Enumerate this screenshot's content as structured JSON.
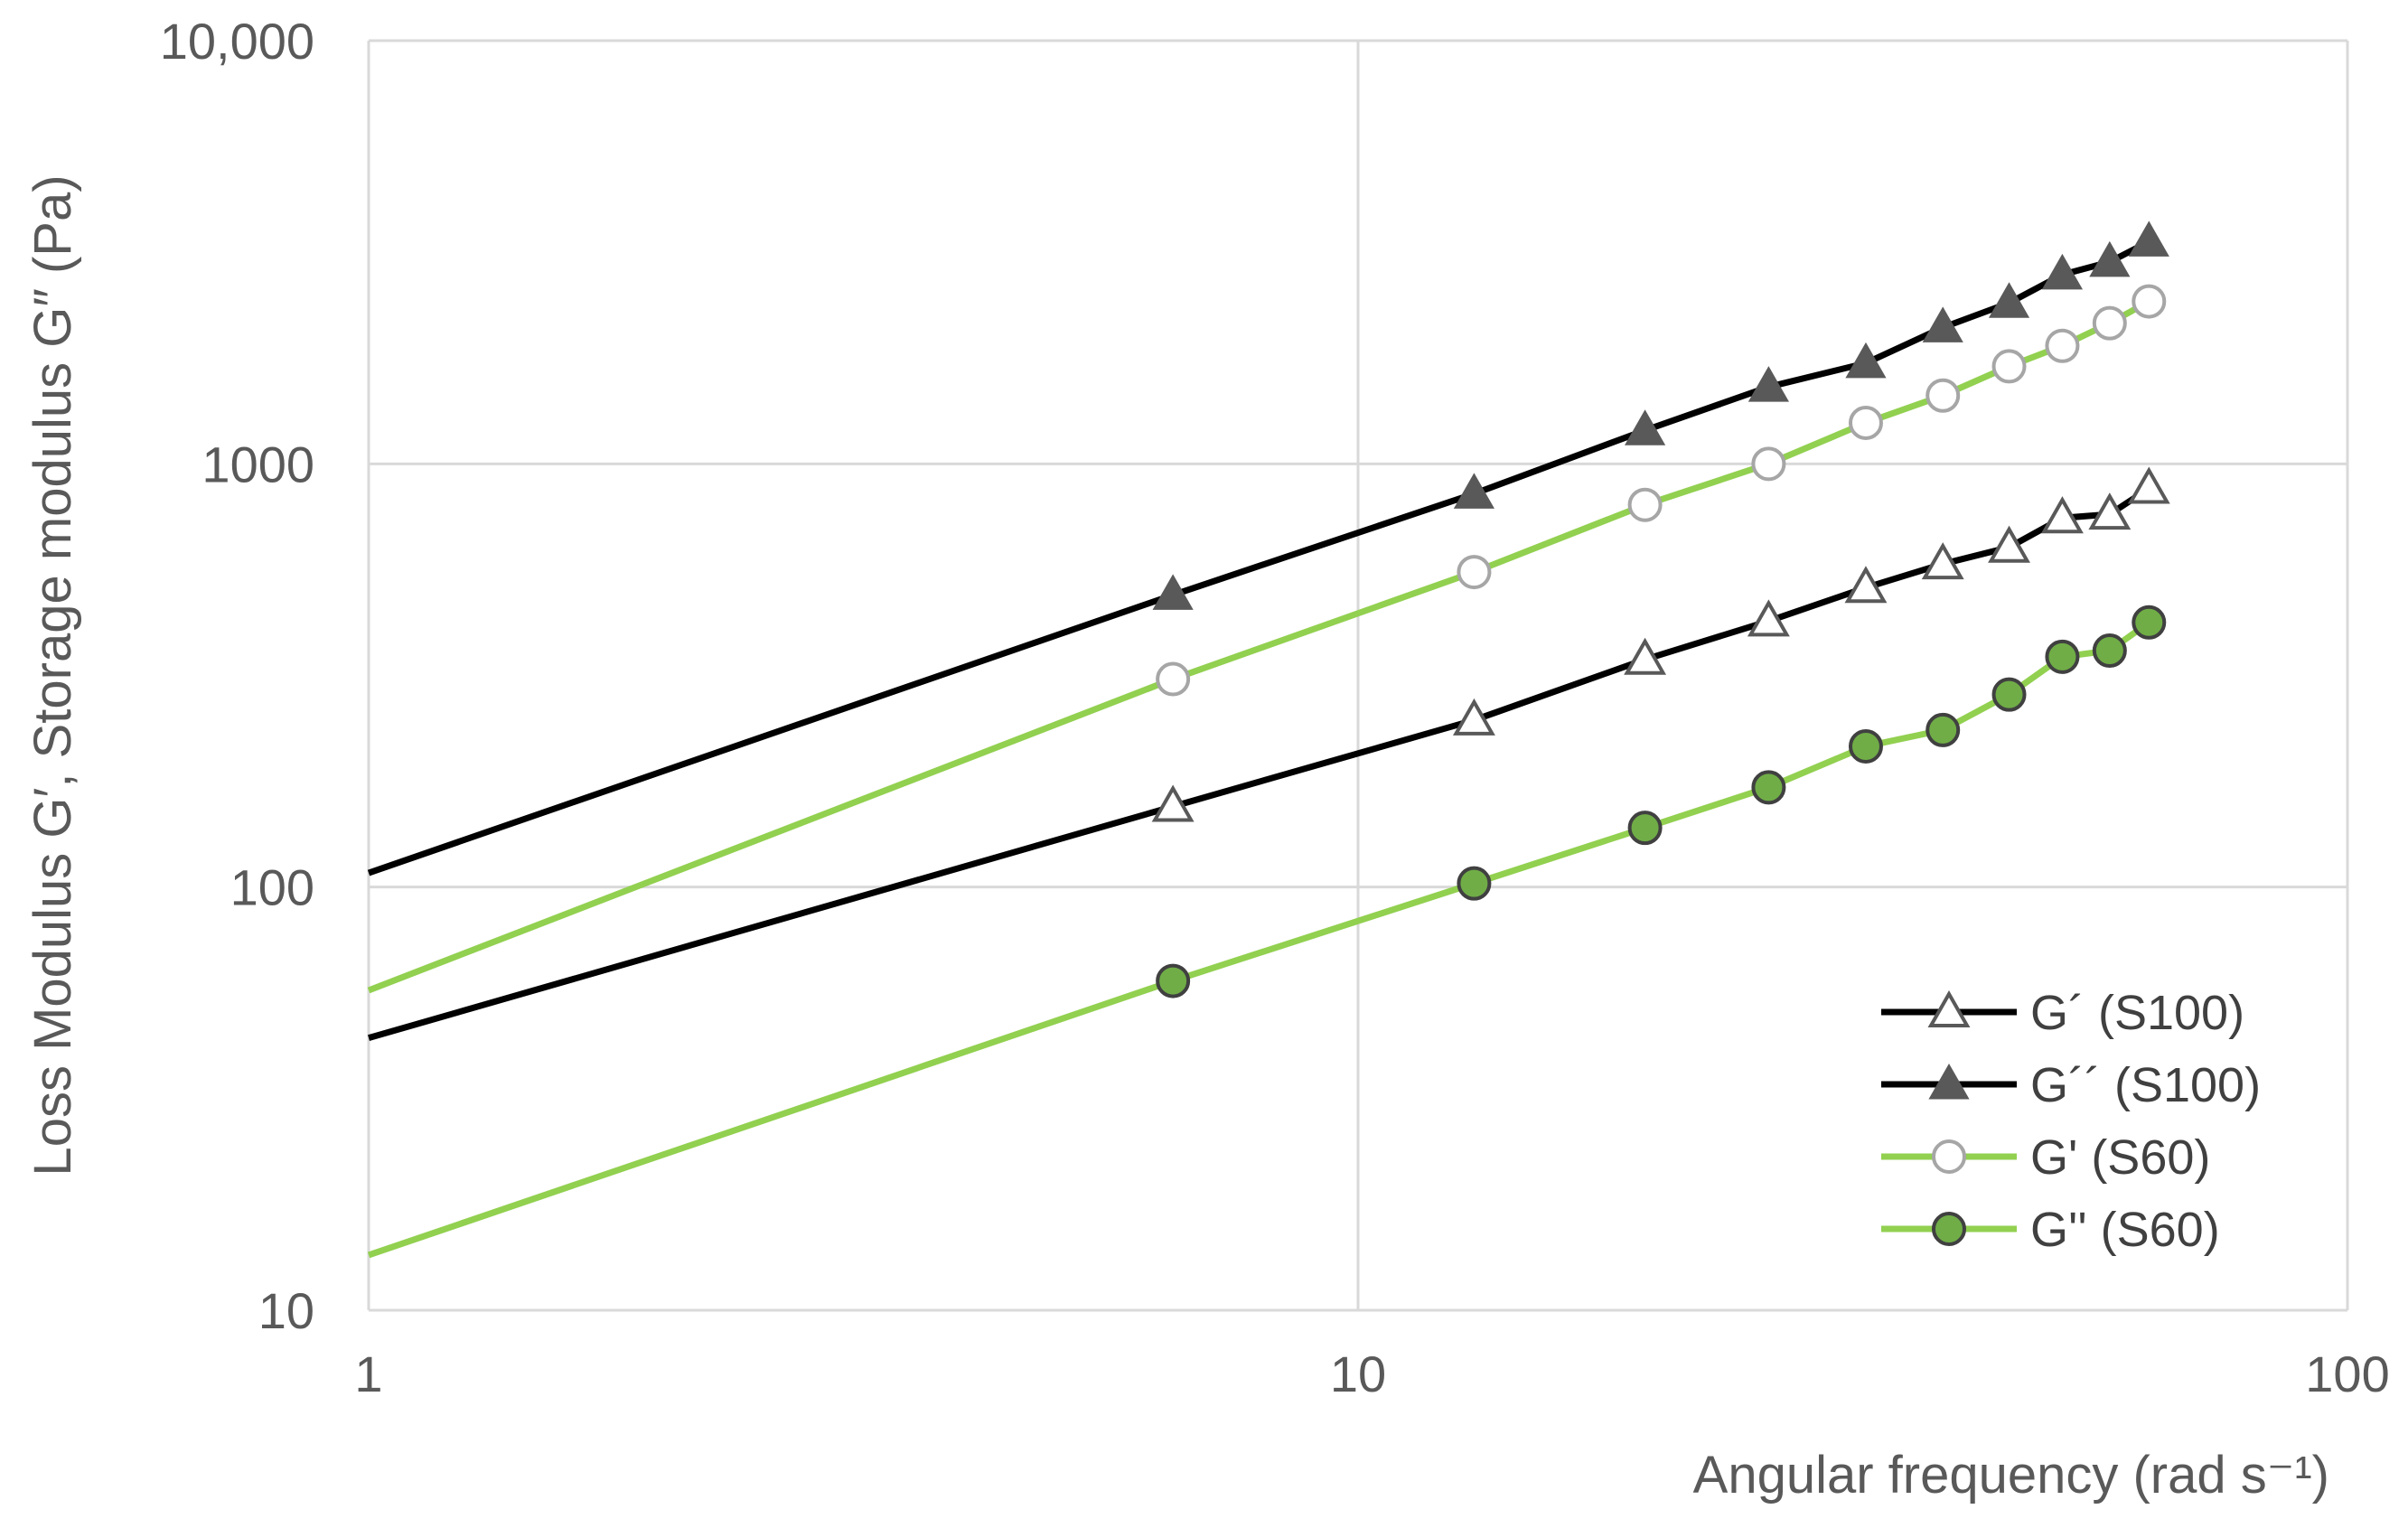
{
  "chart_data": {
    "type": "line",
    "xlabel": "Angular frequency (rad s⁻¹)",
    "ylabel": "Loss Modulus G′, Storage modulus G″ (Pa)",
    "xscale": "log",
    "yscale": "log",
    "xlim": [
      1,
      100
    ],
    "ylim": [
      10,
      10000
    ],
    "xticks": [
      1,
      10,
      100
    ],
    "xtick_labels": [
      "1",
      "10",
      "100"
    ],
    "yticks": [
      10,
      100,
      1000,
      10000
    ],
    "ytick_labels": [
      "10",
      "100",
      "1000",
      "10,000"
    ],
    "grid": true,
    "legend_position": "bottom-right",
    "colors": {
      "black": "#000000",
      "green": "#92d050",
      "marker_dark": "#595959",
      "marker_open_grey": "#a6a6a6",
      "marker_green": "#70ad47",
      "grid": "#d9d9d9"
    },
    "series": [
      {
        "name": "G´ (S100)",
        "line_color": "#000000",
        "marker": "open-triangle",
        "x": [
          6.5,
          13.1,
          19.5,
          26.0,
          32.6,
          39.0,
          45.5,
          51.5,
          57.5,
          63.0
        ],
        "y": [
          155,
          248,
          345,
          425,
          510,
          580,
          635,
          745,
          760,
          875
        ],
        "fit_line_start": {
          "x": 1,
          "y": 44
        }
      },
      {
        "name": "G´´ (S100)",
        "line_color": "#000000",
        "marker": "filled-triangle",
        "x": [
          6.5,
          13.1,
          19.5,
          26.0,
          32.6,
          39.0,
          45.5,
          51.5,
          57.5,
          63.0
        ],
        "y": [
          490,
          850,
          1200,
          1520,
          1730,
          2100,
          2400,
          2800,
          3000,
          3350
        ],
        "fit_line_start": {
          "x": 1,
          "y": 108
        }
      },
      {
        "name": "G' (S60)",
        "line_color": "#92d050",
        "marker": "open-circle",
        "x": [
          6.5,
          13.1,
          19.5,
          26.0,
          32.6,
          39.0,
          45.5,
          51.5,
          57.5,
          63.0
        ],
        "y": [
          310,
          555,
          800,
          1000,
          1250,
          1450,
          1700,
          1900,
          2150,
          2420
        ],
        "fit_line_start": {
          "x": 1,
          "y": 57
        }
      },
      {
        "name": "G'' (S60)",
        "line_color": "#92d050",
        "marker": "filled-circle",
        "x": [
          6.5,
          13.1,
          19.5,
          26.0,
          32.6,
          39.0,
          45.5,
          51.5,
          57.5,
          63.0
        ],
        "y": [
          60,
          102,
          138,
          172,
          215,
          235,
          285,
          350,
          362,
          422
        ],
        "fit_line_start": {
          "x": 1,
          "y": 13.5
        }
      }
    ]
  }
}
